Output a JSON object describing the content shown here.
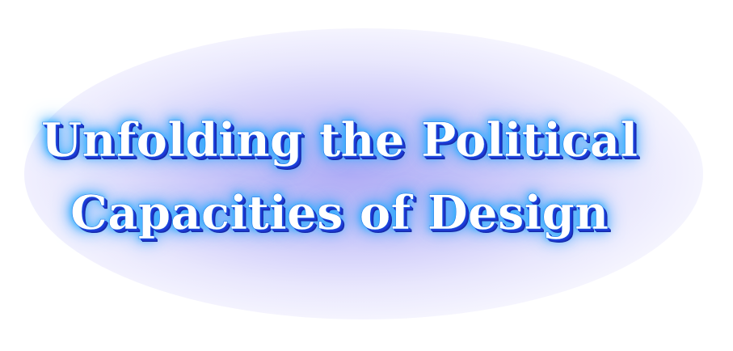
{
  "title": {
    "line1": "Unfolding the Political",
    "line2": "Capacities of Design"
  },
  "colors": {
    "background": "#ffffff",
    "glow": "#aca8f5",
    "text_fill": "#ffffff",
    "text_shadow": "#1e3bd8",
    "text_glow": "#22b8ff"
  }
}
